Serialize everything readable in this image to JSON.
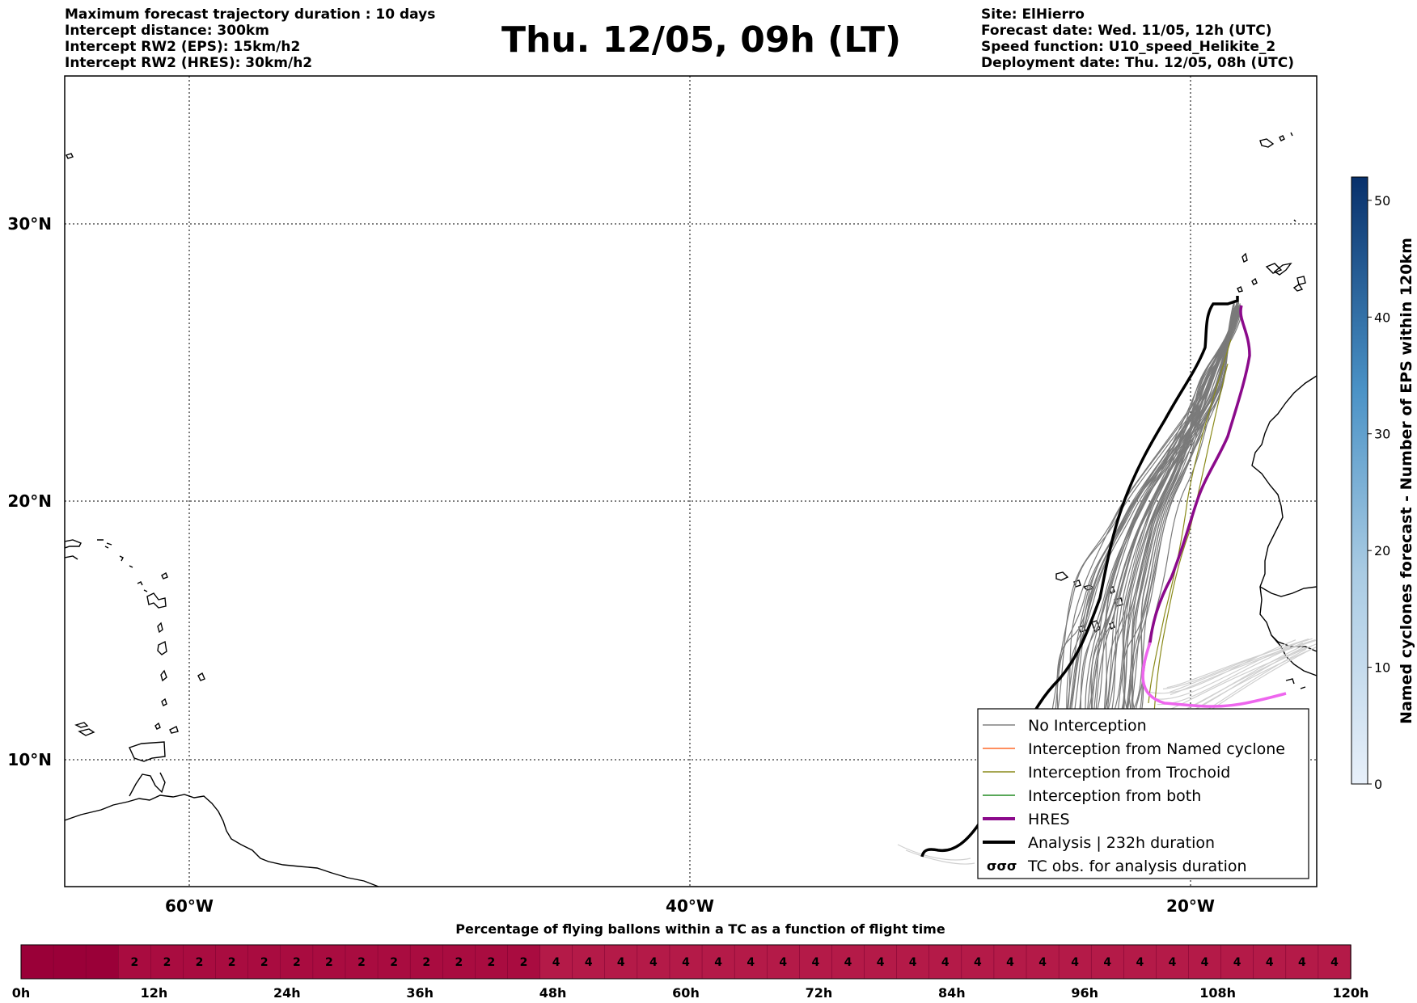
{
  "header": {
    "left_lines": [
      "Maximum forecast trajectory duration : 10 days",
      "Intercept distance: 300km",
      "Intercept RW2 (EPS):  15km/h2",
      "Intercept RW2 (HRES): 30km/h2"
    ],
    "title": "Thu. 12/05, 09h (LT)",
    "right_lines": [
      "Site: ElHierro",
      "Forecast date: Wed. 11/05, 12h (UTC)",
      "Speed function: U10_speed_Helikite_2",
      "Deployment date: Thu. 12/05, 08h (UTC)"
    ]
  },
  "map": {
    "lat_labels": [
      "30°N",
      "20°N",
      "10°N"
    ],
    "lon_labels": [
      "60°W",
      "40°W",
      "20°W"
    ]
  },
  "legend": {
    "items": [
      {
        "label": "No Interception",
        "color": "#808080",
        "style": "thin"
      },
      {
        "label": "Interception from Named cyclone",
        "color": "#ff6a2a",
        "style": "thin"
      },
      {
        "label": "Interception from Trochoid",
        "color": "#8a8a1a",
        "style": "thin"
      },
      {
        "label": "Interception from both",
        "color": "#228b22",
        "style": "thin"
      },
      {
        "label": "HRES",
        "color": "#8b0a8b",
        "style": "thick"
      },
      {
        "label": "Analysis | 232h duration",
        "color": "#000000",
        "style": "thick"
      },
      {
        "label": "TC obs. for analysis duration",
        "color": "#000000",
        "style": "symbol"
      }
    ]
  },
  "colorbar": {
    "label": "Named cyclones forecast - Number of EPS within 120km",
    "ticks": [
      "0",
      "10",
      "20",
      "30",
      "40",
      "50"
    ],
    "range": [
      0,
      52
    ],
    "color_low": "#e8f0fa",
    "color_high": "#08306b"
  },
  "timeline": {
    "title": "Percentage of flying ballons within a TC as a function of flight time",
    "tick_labels": [
      "0h",
      "12h",
      "24h",
      "36h",
      "48h",
      "60h",
      "72h",
      "84h",
      "96h",
      "108h",
      "120h"
    ],
    "cells": [
      "",
      "",
      "",
      "2",
      "2",
      "2",
      "2",
      "2",
      "2",
      "2",
      "2",
      "2",
      "2",
      "2",
      "2",
      "2",
      "4",
      "4",
      "4",
      "4",
      "4",
      "4",
      "4",
      "4",
      "4",
      "4",
      "4",
      "4",
      "4",
      "4",
      "4",
      "4",
      "4",
      "4",
      "4",
      "4",
      "4",
      "4",
      "4",
      "4",
      "4"
    ],
    "color_zero": "#9a0038",
    "color_two": "#a90c40",
    "color_four": "#b41a48"
  }
}
